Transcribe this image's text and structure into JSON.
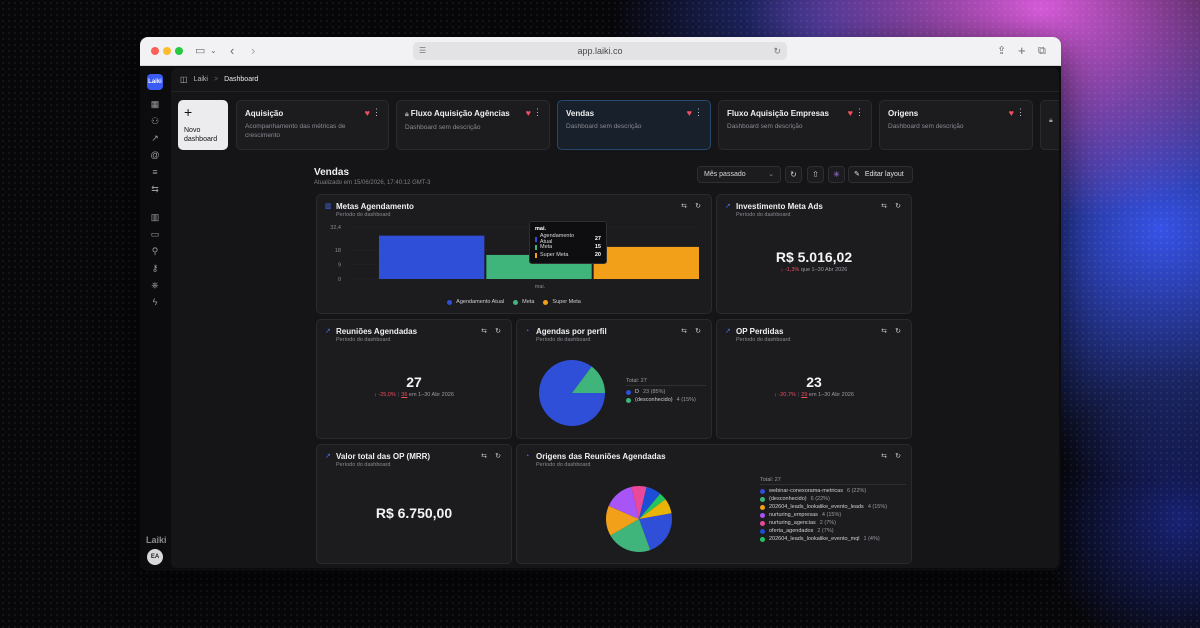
{
  "browser": {
    "url": "app.laiki.co"
  },
  "sidebar": {
    "logo": "Laiki",
    "brand": "Laiki",
    "avatar": "EA",
    "icons": [
      "grid-icon",
      "users-icon",
      "trending-icon",
      "at-icon",
      "filter-icon",
      "transfer-icon",
      "building-icon",
      "card-icon",
      "user-settings-icon",
      "key-icon",
      "share-icon",
      "bolt-icon"
    ]
  },
  "breadcrumb": {
    "root": "Laiki",
    "separator": ">",
    "current": "Dashboard"
  },
  "tabs": {
    "new_label_1": "Novo",
    "new_label_2": "dashboard",
    "items": [
      {
        "title": "Aquisição",
        "desc": "Acompanhamento das métricas de crescimento",
        "favorite": true,
        "locked": false
      },
      {
        "title": "Fluxo Aquisição Agências",
        "desc": "Dashboard sem descrição",
        "favorite": true,
        "locked": true
      },
      {
        "title": "Vendas",
        "desc": "Dashboard sem descrição",
        "favorite": true,
        "locked": false,
        "active": true
      },
      {
        "title": "Fluxo Aquisição Empresas",
        "desc": "Dashboard sem descrição",
        "favorite": true,
        "locked": false
      },
      {
        "title": "Origens",
        "desc": "Dashboard sem descrição",
        "favorite": true,
        "locked": false
      }
    ]
  },
  "dashboard": {
    "title": "Vendas",
    "updated": "Atualizado em 15/06/2026, 17:40:12 GMT-3",
    "period_select": "Mês passado",
    "edit_layout": "Editar layout"
  },
  "cards": {
    "metas": {
      "title": "Metas Agendamento",
      "subtitle": "Período do dashboard"
    },
    "investimento": {
      "title": "Investimento Meta Ads",
      "subtitle": "Período do dashboard",
      "value": "R$ 5.016,02",
      "delta": "-1,3%",
      "delta_text": "que 1–30 Abr 2026"
    },
    "reunioes": {
      "title": "Reuniões Agendadas",
      "subtitle": "Período do dashboard",
      "value": "27",
      "delta": "-25,0%",
      "prev": "36",
      "delta_text": "em 1–30 Abr 2026"
    },
    "agendas_perfil": {
      "title": "Agendas por perfil",
      "subtitle": "Período do dashboard",
      "total": "Total: 27"
    },
    "op_perdidas": {
      "title": "OP Perdidas",
      "subtitle": "Período do dashboard",
      "value": "23",
      "delta": "-20,7%",
      "prev": "29",
      "delta_text": "em 1–30 Abr 2026"
    },
    "valor_op": {
      "title": "Valor total das OP (MRR)",
      "subtitle": "Período do dashboard",
      "value": "R$ 6.750,00"
    },
    "origens": {
      "title": "Origens das Reuniões Agendadas",
      "subtitle": "Período do dashboard",
      "total": "Total: 27"
    }
  },
  "chart_data": [
    {
      "type": "bar",
      "title": "Metas Agendamento",
      "categories": [
        "mai."
      ],
      "ylim": [
        0,
        32.4
      ],
      "yticks": [
        "32,4",
        "18",
        "9",
        "0"
      ],
      "series": [
        {
          "name": "Agendamento Atual",
          "values": [
            27
          ],
          "color": "#2f4fd8"
        },
        {
          "name": "Meta",
          "values": [
            15
          ],
          "color": "#3fb57b"
        },
        {
          "name": "Super Meta",
          "values": [
            20
          ],
          "color": "#f2a019"
        }
      ],
      "legend": "bottom",
      "tooltip": {
        "label": "mai.",
        "rows": [
          {
            "name": "Agendamento Atual",
            "value": "27"
          },
          {
            "name": "Meta",
            "value": "15"
          },
          {
            "name": "Super Meta",
            "value": "20"
          }
        ]
      }
    },
    {
      "type": "pie",
      "title": "Agendas por perfil",
      "total": 27,
      "slices": [
        {
          "label": "D",
          "value": 23,
          "display": "23 (85%)",
          "color": "#2f4fd8"
        },
        {
          "label": "(desconhecido)",
          "value": 4,
          "display": "4 (15%)",
          "color": "#3fb57b"
        }
      ]
    },
    {
      "type": "pie",
      "title": "Origens das Reuniões Agendadas",
      "total": 27,
      "slices": [
        {
          "label": "webinar-conexorama-metricas",
          "value": 6,
          "display": "6 (22%)",
          "color": "#2f4fd8"
        },
        {
          "label": "(desconhecido)",
          "value": 6,
          "display": "6 (22%)",
          "color": "#3fb57b"
        },
        {
          "label": "202604_leads_lookalike_evento_leads",
          "value": 4,
          "display": "4 (15%)",
          "color": "#f2a019"
        },
        {
          "label": "nurturing_empresas",
          "value": 4,
          "display": "4 (15%)",
          "color": "#a855f7"
        },
        {
          "label": "nurturing_agencias",
          "value": 2,
          "display": "2 (7%)",
          "color": "#ec4899"
        },
        {
          "label": "oferta_agendados",
          "value": 2,
          "display": "2 (7%)",
          "color": "#1d4ed8"
        },
        {
          "label": "202604_leads_lookalike_evento_mql",
          "value": 1,
          "display": "1 (4%)",
          "color": "#22c55e"
        },
        {
          "label": "other",
          "value": 2,
          "display": "",
          "color": "#eab308"
        }
      ]
    }
  ]
}
